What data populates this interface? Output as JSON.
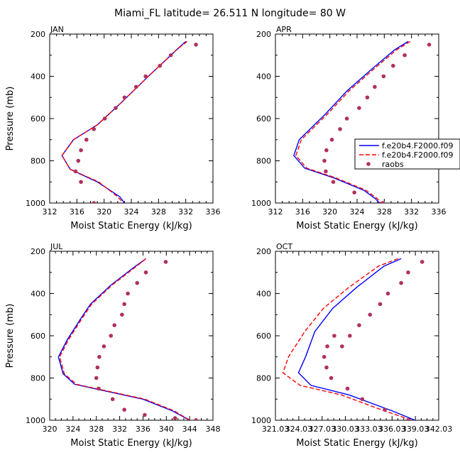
{
  "title": "Miami_FL  latitude= 26.511 N longitude= 80 W",
  "legend": {
    "placement": "right of APR panel",
    "entries": [
      {
        "label": "f.e20b4.F2000.f09",
        "color": "#0000ff",
        "style": "solid"
      },
      {
        "label": "f.e20b4.F2000.f09",
        "color": "#ff0000",
        "style": "dashed"
      },
      {
        "label": "raobs",
        "color": "#b03060",
        "style": "marker"
      }
    ]
  },
  "chart_data": [
    {
      "type": "line",
      "panel": "JAN",
      "xlabel": "Moist Static Energy (kJ/kg)",
      "ylabel": "Pressure (mb)",
      "xlim": [
        312,
        336
      ],
      "ylim": [
        1000,
        200
      ],
      "xticks": [
        "312",
        "316",
        "320",
        "324",
        "328",
        "332",
        "336"
      ],
      "yticks": [
        "200",
        "400",
        "600",
        "800",
        "1000"
      ],
      "series": [
        {
          "name": "f.e20b4.F2000.f09",
          "color": "#0000ff",
          "style": "solid",
          "x": [
            332.0,
            330.8,
            326.5,
            322.5,
            319.0,
            315.5,
            313.8,
            315.0,
            319.0,
            322.3,
            323.0
          ],
          "y": [
            235,
            270,
            400,
            525,
            630,
            700,
            775,
            840,
            900,
            970,
            1000
          ]
        },
        {
          "name": "f.e20b4.F2000.f09",
          "color": "#ff0000",
          "style": "dashed",
          "x": [
            332.2,
            330.8,
            326.5,
            322.5,
            319.0,
            315.5,
            313.8,
            315.0,
            319.2,
            322.0,
            322.8
          ],
          "y": [
            235,
            270,
            400,
            525,
            630,
            700,
            775,
            840,
            900,
            970,
            1000
          ]
        },
        {
          "name": "raobs",
          "color": "#b03060",
          "style": "marker",
          "x": [
            333.5,
            329.8,
            328.2,
            326.1,
            324.7,
            323.0,
            321.7,
            320.1,
            318.5,
            317.4,
            316.6,
            316.2,
            315.8,
            316.6,
            318.5
          ],
          "y": [
            250,
            300,
            350,
            400,
            450,
            500,
            550,
            600,
            650,
            700,
            750,
            800,
            850,
            900,
            1000
          ]
        }
      ]
    },
    {
      "type": "line",
      "panel": "APR",
      "xlabel": "Moist Static Energy (kJ/kg)",
      "ylabel": "",
      "xlim": [
        312,
        336
      ],
      "ylim": [
        1000,
        200
      ],
      "xticks": [
        "312",
        "316",
        "320",
        "324",
        "328",
        "332",
        "336"
      ],
      "yticks": [
        "200",
        "400",
        "600",
        "800",
        "1000"
      ],
      "series": [
        {
          "name": "f.e20b4.F2000.f09",
          "color": "#0000ff",
          "style": "solid",
          "x": [
            331.5,
            329.5,
            326.0,
            322.5,
            319.3,
            315.5,
            314.7,
            316.3,
            320.5,
            325.0,
            326.7,
            327.3
          ],
          "y": [
            235,
            275,
            370,
            470,
            580,
            700,
            775,
            835,
            880,
            940,
            980,
            1000
          ]
        },
        {
          "name": "f.e20b4.F2000.f09",
          "color": "#ff0000",
          "style": "dashed",
          "x": [
            331.8,
            329.8,
            326.3,
            322.8,
            319.6,
            315.8,
            315.0,
            316.6,
            320.8,
            325.3,
            327.0,
            327.5
          ],
          "y": [
            235,
            275,
            370,
            470,
            580,
            700,
            775,
            835,
            880,
            940,
            980,
            1000
          ]
        },
        {
          "name": "raobs",
          "color": "#b03060",
          "style": "marker",
          "x": [
            334.6,
            331.0,
            329.3,
            327.9,
            326.6,
            325.5,
            324.3,
            322.5,
            321.5,
            320.3,
            319.5,
            319.2,
            319.4,
            320.5,
            323.6,
            327.8
          ],
          "y": [
            250,
            300,
            350,
            400,
            450,
            500,
            550,
            600,
            650,
            700,
            750,
            800,
            850,
            900,
            950,
            1000
          ]
        }
      ]
    },
    {
      "type": "line",
      "panel": "JUL",
      "xlabel": "Moist Static Energy (kJ/kg)",
      "ylabel": "Pressure (mb)",
      "xlim": [
        320,
        348
      ],
      "ylim": [
        1000,
        200
      ],
      "xticks": [
        "320",
        "324",
        "328",
        "332",
        "336",
        "340",
        "344",
        "348"
      ],
      "yticks": [
        "200",
        "400",
        "600",
        "800",
        "1000"
      ],
      "series": [
        {
          "name": "f.e20b4.F2000.f09",
          "color": "#0000ff",
          "style": "solid",
          "x": [
            336.5,
            334.5,
            330.5,
            327.0,
            325.3,
            323.0,
            321.5,
            322.3,
            324.3,
            336.0,
            341.0,
            343.0,
            344.0
          ],
          "y": [
            235,
            275,
            360,
            450,
            520,
            620,
            700,
            780,
            830,
            900,
            955,
            985,
            1000
          ]
        },
        {
          "name": "f.e20b4.F2000.f09",
          "color": "#ff0000",
          "style": "dashed",
          "x": [
            336.5,
            334.7,
            330.7,
            327.2,
            325.5,
            323.2,
            321.7,
            322.5,
            324.6,
            336.3,
            341.3,
            343.1,
            344.1
          ],
          "y": [
            235,
            275,
            360,
            450,
            520,
            620,
            700,
            780,
            830,
            900,
            955,
            985,
            1000
          ]
        },
        {
          "name": "raobs",
          "color": "#b03060",
          "style": "marker",
          "x": [
            339.9,
            336.5,
            335.0,
            333.4,
            332.8,
            332.4,
            331.1,
            330.5,
            329.3,
            328.5,
            328.2,
            328.0,
            328.4,
            330.8,
            332.8,
            336.3,
            341.5,
            345.1
          ],
          "y": [
            250,
            300,
            350,
            400,
            450,
            500,
            550,
            600,
            650,
            700,
            750,
            800,
            850,
            900,
            950,
            975,
            990,
            1000
          ]
        }
      ]
    },
    {
      "type": "line",
      "panel": "OCT",
      "xlabel": "Moist Static Energy (kJ/kg)",
      "ylabel": "",
      "xlim": [
        321.03,
        342.03
      ],
      "ylim": [
        1000,
        200
      ],
      "xticks": [
        "321.03",
        "324.03",
        "327.03",
        "330.03",
        "333.03",
        "336.03",
        "339.03",
        "342.03"
      ],
      "yticks": [
        "200",
        "400",
        "600",
        "800",
        "1000"
      ],
      "series": [
        {
          "name": "f.e20b4.F2000.f09",
          "color": "#0000ff",
          "style": "solid",
          "x": [
            337.2,
            335.0,
            331.5,
            328.4,
            326.1,
            324.9,
            324.0,
            325.6,
            330.5,
            336.0,
            339.0
          ],
          "y": [
            235,
            270,
            370,
            470,
            580,
            700,
            775,
            835,
            880,
            955,
            1000
          ]
        },
        {
          "name": "f.e20b4.F2000.f09",
          "color": "#ff0000",
          "style": "dashed",
          "x": [
            336.8,
            334.3,
            330.5,
            327.2,
            324.8,
            322.7,
            322.0,
            324.2,
            329.5,
            335.0,
            338.6
          ],
          "y": [
            235,
            270,
            370,
            470,
            580,
            700,
            775,
            835,
            880,
            955,
            1000
          ]
        },
        {
          "name": "raobs",
          "color": "#b03060",
          "style": "marker",
          "x": [
            339.9,
            338.1,
            337.2,
            335.5,
            334.5,
            333.2,
            331.8,
            330.6,
            329.6,
            328.6,
            327.7,
            327.3,
            327.6,
            328.2,
            330.3,
            332.2,
            335.1,
            338.1
          ],
          "y": [
            250,
            300,
            350,
            400,
            450,
            500,
            550,
            600,
            650,
            600,
            650,
            700,
            750,
            800,
            850,
            900,
            950,
            1000
          ]
        }
      ]
    }
  ]
}
